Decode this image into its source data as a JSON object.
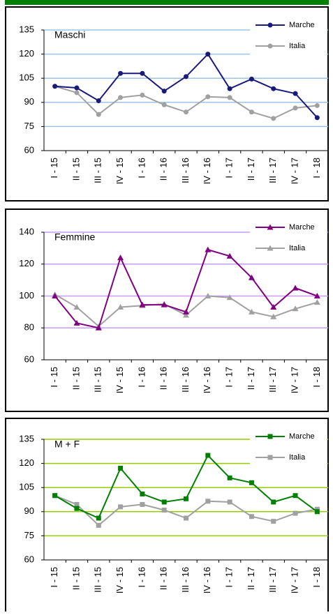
{
  "chart_data": [
    {
      "type": "line",
      "title": "Maschi",
      "categories": [
        "I - 15",
        "II - 15",
        "III - 15",
        "IV - 15",
        "I - 16",
        "II - 16",
        "III - 16",
        "IV - 16",
        "I - 17",
        "II - 17",
        "III - 17",
        "IV - 17",
        "I - 18"
      ],
      "series": [
        {
          "name": "Marche",
          "color": "#1a1a7a",
          "values": [
            100,
            99,
            91,
            108,
            108,
            97,
            106,
            120,
            98.5,
            104.5,
            98.5,
            95.5,
            80.5
          ]
        },
        {
          "name": "Italia",
          "color": "#a0a0a0",
          "values": [
            100,
            96,
            82.5,
            93,
            94.5,
            88.5,
            84,
            93.5,
            93,
            84,
            80,
            86.5,
            88
          ]
        }
      ],
      "ylim": [
        60,
        135
      ],
      "yticks": [
        60,
        75,
        90,
        105,
        120,
        135
      ],
      "grid": true,
      "grid_color": "#9dc3e6",
      "marker": "circle",
      "legend": "top-right"
    },
    {
      "type": "line",
      "title": "Femmine",
      "categories": [
        "I - 15",
        "II - 15",
        "III - 15",
        "IV - 15",
        "I - 16",
        "II - 16",
        "III - 16",
        "IV - 16",
        "I - 17",
        "II - 17",
        "III - 17",
        "IV - 17",
        "I - 18"
      ],
      "series": [
        {
          "name": "Marche",
          "color": "#800080",
          "values": [
            100,
            83,
            80,
            124,
            94.5,
            94.5,
            90,
            129,
            125,
            111.5,
            93,
            105,
            100
          ]
        },
        {
          "name": "Italia",
          "color": "#a0a0a0",
          "values": [
            101,
            93,
            81,
            93,
            94,
            95,
            88,
            100,
            99,
            90,
            87,
            92,
            96
          ]
        }
      ],
      "ylim": [
        60,
        140
      ],
      "yticks": [
        60,
        80,
        100,
        120,
        140
      ],
      "grid": true,
      "grid_color": "#cc99ff",
      "marker": "triangle",
      "legend": "top-right"
    },
    {
      "type": "line",
      "title": "M + F",
      "categories": [
        "I - 15",
        "II - 15",
        "III - 15",
        "IV - 15",
        "I - 16",
        "II - 16",
        "III - 16",
        "IV - 16",
        "I - 17",
        "II - 17",
        "III - 17",
        "IV - 17",
        "I - 18"
      ],
      "series": [
        {
          "name": "Marche",
          "color": "#008000",
          "values": [
            100,
            92,
            86,
            117,
            101,
            96,
            98,
            125,
            111,
            108,
            96,
            100,
            90
          ]
        },
        {
          "name": "Italia",
          "color": "#a0a0a0",
          "values": [
            100,
            94.5,
            81.5,
            93,
            94.5,
            91,
            86,
            96.5,
            96,
            87,
            84,
            89,
            91.5
          ]
        }
      ],
      "ylim": [
        60,
        135
      ],
      "yticks": [
        60,
        75,
        90,
        105,
        120,
        135
      ],
      "grid": true,
      "grid_color": "#99cc00",
      "marker": "square",
      "legend": "top-right"
    }
  ]
}
